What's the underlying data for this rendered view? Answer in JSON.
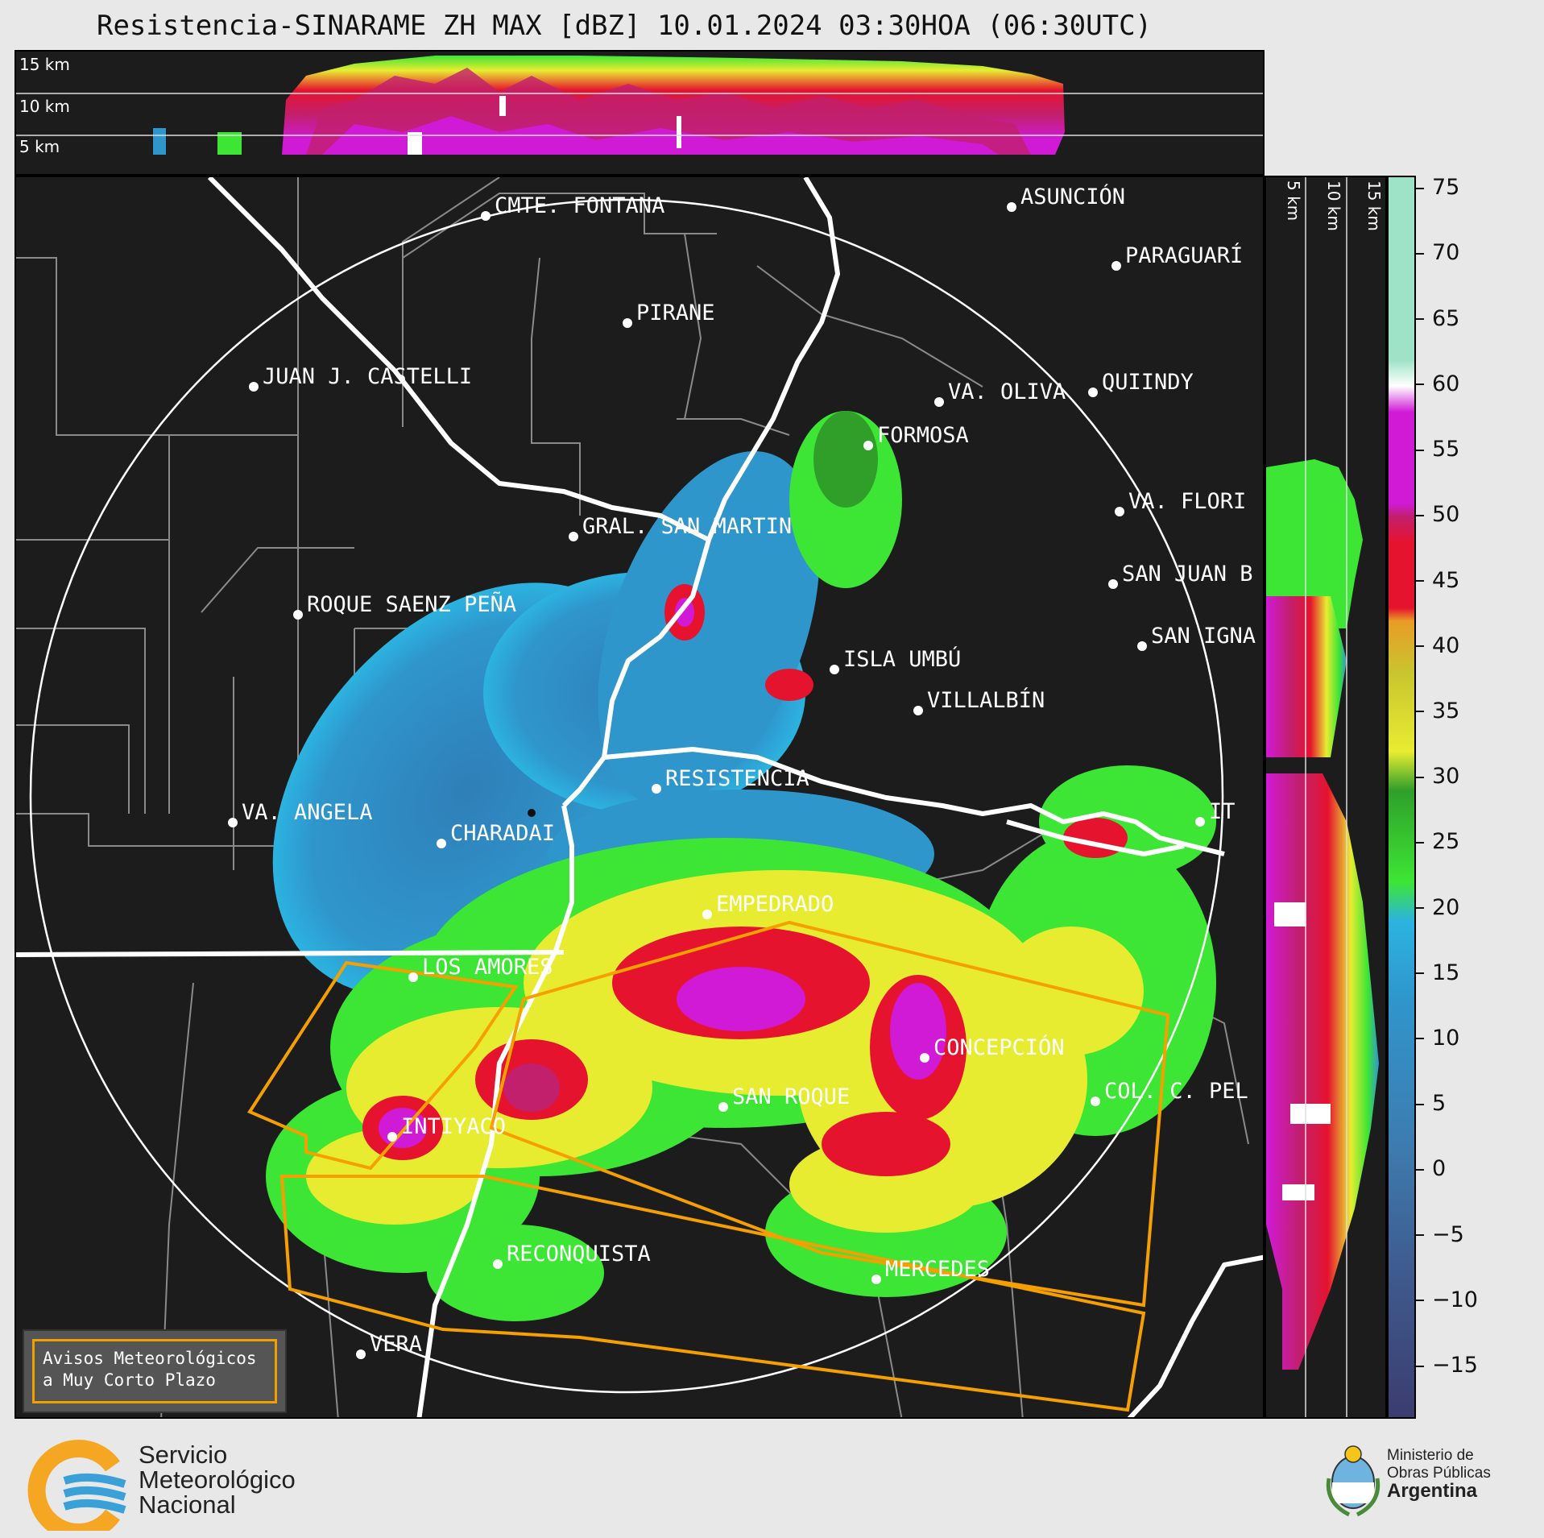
{
  "title": "Resistencia-SINARAME ZH MAX [dBZ] 10.01.2024 03:30HOA (06:30UTC)",
  "top_panel": {
    "labels": [
      "15 km",
      "10 km",
      "5 km"
    ]
  },
  "side_panel": {
    "labels": [
      "5 km",
      "10 km",
      "15 km"
    ]
  },
  "colorbar": {
    "unit": "dBZ",
    "ticks": [
      "75",
      "70",
      "65",
      "60",
      "55",
      "50",
      "45",
      "40",
      "35",
      "30",
      "25",
      "20",
      "15",
      "10",
      "5",
      "0",
      "−5",
      "−10",
      "−15"
    ],
    "range": [
      -19,
      76
    ],
    "colors": {
      "c_-20": "#3b3d6e",
      "c_-10": "#3f5a8e",
      "c_0": "#3d7cb0",
      "c_10": "#2f96cc",
      "c_15": "#2cb3e0",
      "c_20": "#3de634",
      "c_25": "#2f9f2a",
      "c_30": "#e8ec31",
      "c_35": "#c9c52f",
      "c_40": "#e89c25",
      "c_45": "#e6132e",
      "c_50": "#c21f6d",
      "c_55": "#d01ad6",
      "c_60": "#ffffff",
      "c_70": "#9ee3c7"
    }
  },
  "cities": [
    {
      "name": "CMTE. FONTANA"
    },
    {
      "name": "ASUNCIÓN"
    },
    {
      "name": "PIRANE"
    },
    {
      "name": "PARAGUARÍ"
    },
    {
      "name": "JUAN J. CASTELLI"
    },
    {
      "name": "VA. OLIVA"
    },
    {
      "name": "QUIINDY"
    },
    {
      "name": "FORMOSA"
    },
    {
      "name": "VA. FLORI"
    },
    {
      "name": "GRAL. SAN MARTIN"
    },
    {
      "name": "SAN JUAN B"
    },
    {
      "name": "ROQUE SAENZ PEÑA"
    },
    {
      "name": "SAN IGNA"
    },
    {
      "name": "ISLA UMBÚ"
    },
    {
      "name": "VILLALBÍN"
    },
    {
      "name": "RESISTENCIA"
    },
    {
      "name": "VA. ANGELA"
    },
    {
      "name": "CHARADAI"
    },
    {
      "name": "IT"
    },
    {
      "name": "EMPEDRADO"
    },
    {
      "name": "LOS AMORES"
    },
    {
      "name": "CONCEPCIÓN"
    },
    {
      "name": "SAN ROQUE"
    },
    {
      "name": "COL. C. PEL"
    },
    {
      "name": "INTIYACO"
    },
    {
      "name": "RECONQUISTA"
    },
    {
      "name": "MERCEDES"
    },
    {
      "name": "VERA"
    }
  ],
  "legend": {
    "line1": "Avisos Meteorológicos",
    "line2": "a Muy Corto Plazo"
  },
  "footer": {
    "smn_line1": "Servicio",
    "smn_line2": "Meteorológico",
    "smn_line3": "Nacional",
    "ministry_line1": "Ministerio de",
    "ministry_line2": "Obras Públicas",
    "ministry_line3": "Argentina"
  }
}
